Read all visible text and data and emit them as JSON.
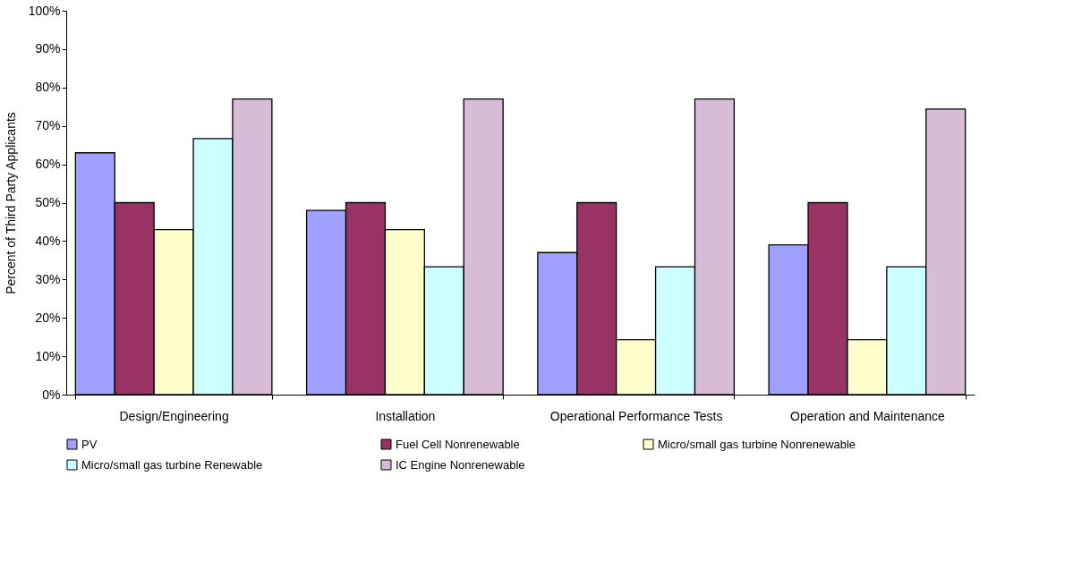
{
  "chart_data": {
    "type": "bar",
    "ylabel": "Percent of Third Party Applicants",
    "categories": [
      "Design/Engineering",
      "Installation",
      "Operational Performance Tests",
      "Operation and Maintenance"
    ],
    "series": [
      {
        "name": "PV",
        "color": "#a0a0ff",
        "values": [
          63,
          48,
          37,
          39
        ]
      },
      {
        "name": "Fuel Cell Nonrenewable",
        "color": "#993366",
        "values": [
          50,
          50,
          50,
          50
        ]
      },
      {
        "name": "Micro/small gas turbine Nonrenewable",
        "color": "#ffffcc",
        "values": [
          43,
          43,
          14.3,
          14.3
        ]
      },
      {
        "name": "Micro/small gas turbine Renewable",
        "color": "#ccffff",
        "values": [
          66.7,
          33.3,
          33.3,
          33.3
        ]
      },
      {
        "name": "IC Engine Nonrenewable",
        "color": "#d6bcd6",
        "values": [
          77,
          77,
          77,
          74.4
        ]
      }
    ],
    "ylim": [
      0,
      100
    ],
    "yticks": [
      {
        "value": 0,
        "label": "0%"
      },
      {
        "value": 10,
        "label": "10%"
      },
      {
        "value": 20,
        "label": "20%"
      },
      {
        "value": 30,
        "label": "30%"
      },
      {
        "value": 40,
        "label": "40%"
      },
      {
        "value": 50,
        "label": "50%"
      },
      {
        "value": 60,
        "label": "60%"
      },
      {
        "value": 70,
        "label": "70%"
      },
      {
        "value": 80,
        "label": "80%"
      },
      {
        "value": 90,
        "label": "90%"
      },
      {
        "value": 100,
        "label": "100%"
      }
    ],
    "grid": false,
    "legend": "bottom"
  }
}
